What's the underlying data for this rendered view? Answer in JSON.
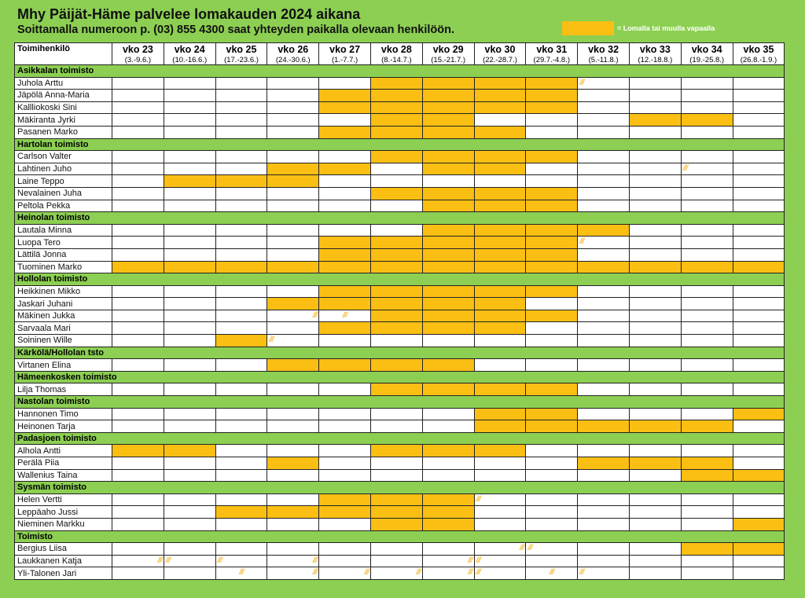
{
  "title": "Mhy Päijät-Häme palvelee lomakauden 2024 aikana",
  "subtitle": "Soittamalla numeroon p. (03) 855 4300 saat yhteyden paikalla olevaan henkilöön.",
  "legend": {
    "label": "= Lomalla tai muulla vapaalla",
    "color": "#fbbf13"
  },
  "colors": {
    "background": "#8ccf52",
    "vacation": "#fbbf13",
    "section": "#8ccf52"
  },
  "name_header": "Toimihenkilö",
  "weeks": [
    {
      "label": "vko 23",
      "dates": "(3.-9.6.)"
    },
    {
      "label": "vko 24",
      "dates": "(10.-16.6.)"
    },
    {
      "label": "vko 25",
      "dates": "(17.-23.6.)"
    },
    {
      "label": "vko 26",
      "dates": "(24.-30.6.)"
    },
    {
      "label": "vko 27",
      "dates": "(1.-7.7.)"
    },
    {
      "label": "vko 28",
      "dates": "(8.-14.7.)"
    },
    {
      "label": "vko 29",
      "dates": "(15.-21.7.)"
    },
    {
      "label": "vko 30",
      "dates": "(22.-28.7.)"
    },
    {
      "label": "vko 31",
      "dates": "(29.7.-4.8.)"
    },
    {
      "label": "vko 32",
      "dates": "(5.-11.8.)"
    },
    {
      "label": "vko 33",
      "dates": "(12.-18.8.)"
    },
    {
      "label": "vko 34",
      "dates": "(19.-25.8.)"
    },
    {
      "label": "vko 35",
      "dates": "(26.8.-1.9.)"
    }
  ],
  "sections": [
    {
      "name": "Asikkalan toimisto",
      "people": [
        {
          "name": "Juhola Arttu",
          "weeks": [
            0,
            0,
            0,
            0,
            0,
            1,
            1,
            1,
            1,
            0,
            0,
            0,
            0
          ],
          "hatch": [
            [
              9,
              "l"
            ]
          ]
        },
        {
          "name": "Jäpölä Anna-Maria",
          "weeks": [
            0,
            0,
            0,
            0,
            1,
            1,
            1,
            1,
            1,
            0,
            0,
            0,
            0
          ],
          "hatch": []
        },
        {
          "name": "Kallliokoski Sini",
          "weeks": [
            0,
            0,
            0,
            0,
            1,
            1,
            1,
            1,
            1,
            0,
            0,
            0,
            0
          ],
          "hatch": []
        },
        {
          "name": "Mäkiranta Jyrki",
          "weeks": [
            0,
            0,
            0,
            0,
            0,
            1,
            1,
            0,
            0,
            0,
            1,
            1,
            0
          ],
          "hatch": []
        },
        {
          "name": "Pasanen Marko",
          "weeks": [
            0,
            0,
            0,
            0,
            1,
            1,
            1,
            1,
            0,
            0,
            0,
            0,
            0
          ],
          "hatch": []
        }
      ]
    },
    {
      "name": "Hartolan toimisto",
      "people": [
        {
          "name": "Carlson Valter",
          "weeks": [
            0,
            0,
            0,
            0,
            0,
            1,
            1,
            1,
            1,
            0,
            0,
            0,
            0
          ],
          "hatch": []
        },
        {
          "name": "Lahtinen Juho",
          "weeks": [
            0,
            0,
            0,
            1,
            1,
            0,
            1,
            1,
            0,
            0,
            0,
            0,
            0
          ],
          "hatch": [
            [
              11,
              "l"
            ]
          ]
        },
        {
          "name": "Laine Teppo",
          "weeks": [
            0,
            1,
            1,
            1,
            0,
            0,
            0,
            0,
            0,
            0,
            0,
            0,
            0
          ],
          "hatch": []
        },
        {
          "name": "Nevalainen Juha",
          "weeks": [
            0,
            0,
            0,
            0,
            0,
            1,
            1,
            1,
            1,
            0,
            0,
            0,
            0
          ],
          "hatch": []
        },
        {
          "name": "Peltola Pekka",
          "weeks": [
            0,
            0,
            0,
            0,
            0,
            0,
            1,
            1,
            1,
            0,
            0,
            0,
            0
          ],
          "hatch": []
        }
      ]
    },
    {
      "name": "Heinolan toimisto",
      "people": [
        {
          "name": "Lautala Minna",
          "weeks": [
            0,
            0,
            0,
            0,
            0,
            0,
            1,
            1,
            1,
            1,
            0,
            0,
            0
          ],
          "hatch": []
        },
        {
          "name": "Luopa Tero",
          "weeks": [
            0,
            0,
            0,
            0,
            1,
            1,
            1,
            1,
            1,
            0,
            0,
            0,
            0
          ],
          "hatch": [
            [
              9,
              "l"
            ]
          ]
        },
        {
          "name": "Lättilä Jonna",
          "weeks": [
            0,
            0,
            0,
            0,
            1,
            1,
            1,
            1,
            1,
            0,
            0,
            0,
            0
          ],
          "hatch": []
        },
        {
          "name": "Tuominen Marko",
          "weeks": [
            1,
            1,
            1,
            1,
            1,
            1,
            1,
            1,
            1,
            1,
            1,
            1,
            1
          ],
          "hatch": []
        }
      ]
    },
    {
      "name": "Hollolan toimisto",
      "people": [
        {
          "name": "Heikkinen Mikko",
          "weeks": [
            0,
            0,
            0,
            0,
            1,
            1,
            1,
            1,
            1,
            0,
            0,
            0,
            0
          ],
          "hatch": []
        },
        {
          "name": "Jaskari Juhani",
          "weeks": [
            0,
            0,
            0,
            1,
            1,
            1,
            1,
            1,
            0,
            0,
            0,
            0,
            0
          ],
          "hatch": []
        },
        {
          "name": "Mäkinen Jukka",
          "weeks": [
            0,
            0,
            0,
            0,
            0,
            1,
            1,
            1,
            1,
            0,
            0,
            0,
            0
          ],
          "hatch": [
            [
              3,
              "r"
            ],
            [
              4,
              "c"
            ]
          ]
        },
        {
          "name": "Sarvaala Mari",
          "weeks": [
            0,
            0,
            0,
            0,
            1,
            1,
            1,
            1,
            0,
            0,
            0,
            0,
            0
          ],
          "hatch": []
        },
        {
          "name": "Soininen Wille",
          "weeks": [
            0,
            0,
            1,
            0,
            0,
            0,
            0,
            0,
            0,
            0,
            0,
            0,
            0
          ],
          "hatch": [
            [
              3,
              "l"
            ]
          ]
        }
      ]
    },
    {
      "name": "Kärkölä/Hollolan tsto",
      "people": [
        {
          "name": "Virtanen Elina",
          "weeks": [
            0,
            0,
            0,
            1,
            1,
            1,
            1,
            0,
            0,
            0,
            0,
            0,
            0
          ],
          "hatch": []
        }
      ]
    },
    {
      "name": "Hämeenkosken toimisto",
      "people": [
        {
          "name": "Lilja Thomas",
          "weeks": [
            0,
            0,
            0,
            0,
            0,
            1,
            1,
            1,
            1,
            0,
            0,
            0,
            0
          ],
          "hatch": []
        }
      ]
    },
    {
      "name": "Nastolan toimisto",
      "people": [
        {
          "name": "Hannonen Timo",
          "weeks": [
            0,
            0,
            0,
            0,
            0,
            0,
            0,
            1,
            1,
            0,
            0,
            0,
            1
          ],
          "hatch": []
        },
        {
          "name": "Heinonen Tarja",
          "weeks": [
            0,
            0,
            0,
            0,
            0,
            0,
            0,
            1,
            1,
            1,
            1,
            1,
            0
          ],
          "hatch": []
        }
      ]
    },
    {
      "name": "Padasjoen toimisto",
      "people": [
        {
          "name": "Alhola Antti",
          "weeks": [
            1,
            1,
            0,
            0,
            0,
            1,
            1,
            1,
            0,
            0,
            0,
            0,
            0
          ],
          "hatch": []
        },
        {
          "name": "Perälä Piia",
          "weeks": [
            0,
            0,
            0,
            1,
            0,
            0,
            0,
            0,
            0,
            1,
            1,
            1,
            0
          ],
          "hatch": []
        },
        {
          "name": "Wallenius Taina",
          "weeks": [
            0,
            0,
            0,
            0,
            0,
            0,
            0,
            0,
            0,
            0,
            0,
            1,
            1
          ],
          "hatch": []
        }
      ]
    },
    {
      "name": "Sysmän toimisto",
      "people": [
        {
          "name": "Helen Vertti",
          "weeks": [
            0,
            0,
            0,
            0,
            1,
            1,
            1,
            0,
            0,
            0,
            0,
            0,
            0
          ],
          "hatch": [
            [
              7,
              "l"
            ]
          ]
        },
        {
          "name": "Leppäaho Jussi",
          "weeks": [
            0,
            0,
            1,
            1,
            1,
            1,
            1,
            0,
            0,
            0,
            0,
            0,
            0
          ],
          "hatch": []
        },
        {
          "name": "Nieminen Markku",
          "weeks": [
            0,
            0,
            0,
            0,
            0,
            1,
            1,
            0,
            0,
            0,
            0,
            0,
            1
          ],
          "hatch": []
        }
      ]
    },
    {
      "name": "Toimisto",
      "people": [
        {
          "name": "Bergius Liisa",
          "weeks": [
            0,
            0,
            0,
            0,
            0,
            0,
            0,
            0,
            0,
            0,
            0,
            1,
            1
          ],
          "hatch": [
            [
              7,
              "r"
            ],
            [
              8,
              "l"
            ]
          ]
        },
        {
          "name": "Laukkanen Katja",
          "weeks": [
            0,
            0,
            0,
            0,
            0,
            0,
            0,
            0,
            0,
            0,
            0,
            0,
            0
          ],
          "hatch": [
            [
              0,
              "r"
            ],
            [
              1,
              "l"
            ],
            [
              2,
              "l"
            ],
            [
              3,
              "r"
            ],
            [
              6,
              "r"
            ],
            [
              7,
              "l"
            ]
          ]
        },
        {
          "name": "Yli-Talonen Jari",
          "weeks": [
            0,
            0,
            0,
            0,
            0,
            0,
            0,
            0,
            0,
            0,
            0,
            0,
            0
          ],
          "hatch": [
            [
              2,
              "c"
            ],
            [
              3,
              "r"
            ],
            [
              4,
              "r"
            ],
            [
              5,
              "r"
            ],
            [
              6,
              "r"
            ],
            [
              7,
              "l"
            ],
            [
              8,
              "c"
            ],
            [
              9,
              "l"
            ]
          ]
        }
      ]
    }
  ]
}
